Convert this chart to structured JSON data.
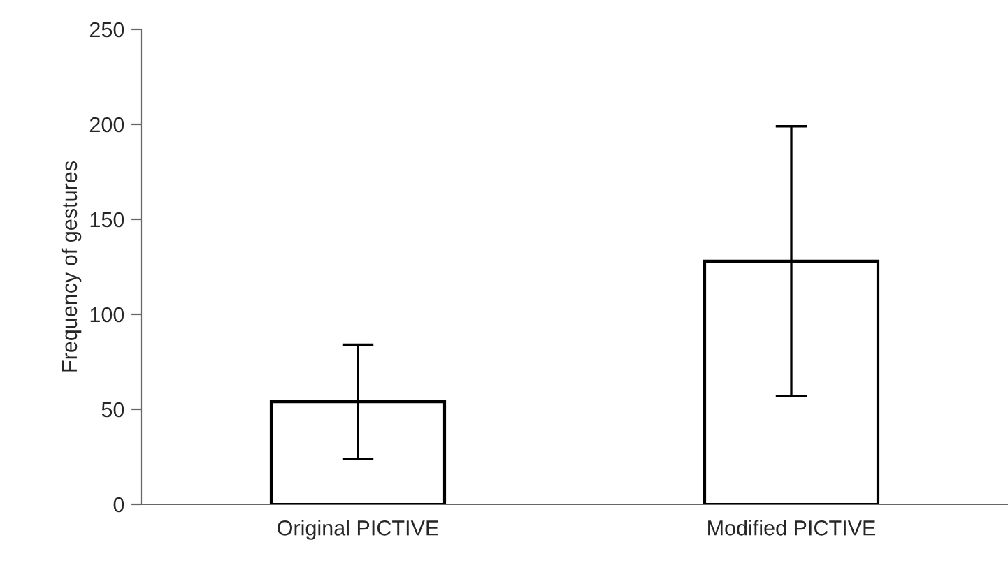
{
  "chart_data": {
    "type": "bar",
    "ylabel": "Frequency of gestures",
    "categories": [
      "Original PICTIVE",
      "Modified PICTIVE"
    ],
    "values": [
      54,
      128
    ],
    "errors": [
      30,
      71
    ],
    "color": "#ffffff",
    "ylim": [
      0,
      250
    ],
    "yticks": [
      0,
      50,
      100,
      150,
      200,
      250
    ],
    "grid": false,
    "legend": false
  }
}
